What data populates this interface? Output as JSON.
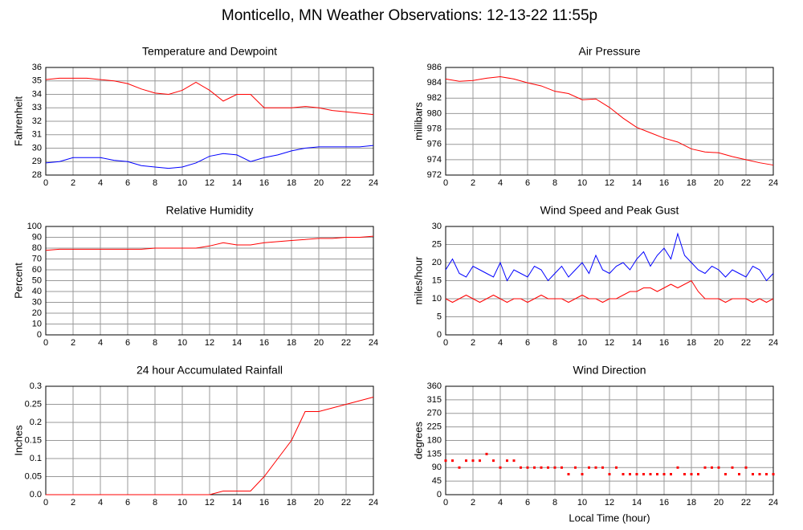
{
  "title": "Monticello, MN Weather Observations: 12-13-22 11:55p",
  "chart_data": [
    {
      "type": "line",
      "title": "Temperature and Dewpoint",
      "ylabel": "Fahrenheit",
      "x": [
        0,
        1,
        2,
        3,
        4,
        5,
        6,
        7,
        8,
        9,
        10,
        11,
        12,
        13,
        14,
        15,
        16,
        17,
        18,
        19,
        20,
        21,
        22,
        23,
        24
      ],
      "series": [
        {
          "color": "#ff0000",
          "values": [
            35.1,
            35.2,
            35.2,
            35.2,
            35.1,
            35.0,
            34.8,
            34.4,
            34.1,
            34.0,
            34.3,
            34.9,
            34.3,
            33.5,
            34.0,
            34.0,
            33.0,
            33.0,
            33.0,
            33.1,
            33.0,
            32.8,
            32.7,
            32.6,
            32.5
          ]
        },
        {
          "color": "#0000ff",
          "values": [
            28.9,
            29.0,
            29.3,
            29.3,
            29.3,
            29.1,
            29.0,
            28.7,
            28.6,
            28.5,
            28.6,
            28.9,
            29.4,
            29.6,
            29.5,
            29.0,
            29.3,
            29.5,
            29.8,
            30.0,
            30.1,
            30.1,
            30.1,
            30.1,
            30.2
          ]
        }
      ],
      "xlim": [
        0,
        24
      ],
      "xticks": [
        0,
        2,
        4,
        6,
        8,
        10,
        12,
        14,
        16,
        18,
        20,
        22,
        24
      ],
      "ylim": [
        28,
        36
      ],
      "yticks": [
        28,
        29,
        30,
        31,
        32,
        33,
        34,
        35,
        36
      ],
      "grid": true
    },
    {
      "type": "line",
      "title": "Air Pressure",
      "ylabel": "millibars",
      "x": [
        0,
        1,
        2,
        3,
        4,
        5,
        6,
        7,
        8,
        9,
        10,
        11,
        12,
        13,
        14,
        15,
        16,
        17,
        18,
        19,
        20,
        21,
        22,
        23,
        24
      ],
      "series": [
        {
          "color": "#ff0000",
          "values": [
            984.5,
            984.2,
            984.3,
            984.6,
            984.8,
            984.5,
            984.0,
            983.6,
            982.9,
            982.6,
            981.8,
            981.9,
            980.8,
            979.4,
            978.2,
            977.5,
            976.8,
            976.3,
            975.4,
            975.0,
            974.9,
            974.4,
            974.0,
            973.6,
            973.3
          ]
        }
      ],
      "xlim": [
        0,
        24
      ],
      "xticks": [
        0,
        2,
        4,
        6,
        8,
        10,
        12,
        14,
        16,
        18,
        20,
        22,
        24
      ],
      "ylim": [
        972,
        986
      ],
      "yticks": [
        972,
        974,
        976,
        978,
        980,
        982,
        984,
        986
      ],
      "grid": true
    },
    {
      "type": "line",
      "title": "Relative Humidity",
      "ylabel": "Percent",
      "x": [
        0,
        1,
        2,
        3,
        4,
        5,
        6,
        7,
        8,
        9,
        10,
        11,
        12,
        13,
        14,
        15,
        16,
        17,
        18,
        19,
        20,
        21,
        22,
        23,
        24
      ],
      "series": [
        {
          "color": "#ff0000",
          "values": [
            78,
            79,
            79,
            79,
            79,
            79,
            79,
            79,
            80,
            80,
            80,
            80,
            82,
            85,
            83,
            83,
            85,
            86,
            87,
            88,
            89,
            89,
            90,
            90,
            91
          ]
        }
      ],
      "xlim": [
        0,
        24
      ],
      "xticks": [
        0,
        2,
        4,
        6,
        8,
        10,
        12,
        14,
        16,
        18,
        20,
        22,
        24
      ],
      "ylim": [
        0,
        100
      ],
      "yticks": [
        0,
        10,
        20,
        30,
        40,
        50,
        60,
        70,
        80,
        90,
        100
      ],
      "grid": true
    },
    {
      "type": "line",
      "title": "Wind Speed and Peak Gust",
      "ylabel": "miles/hour",
      "x": [
        0,
        0.5,
        1,
        1.5,
        2,
        2.5,
        3,
        3.5,
        4,
        4.5,
        5,
        5.5,
        6,
        6.5,
        7,
        7.5,
        8,
        8.5,
        9,
        9.5,
        10,
        10.5,
        11,
        11.5,
        12,
        12.5,
        13,
        13.5,
        14,
        14.5,
        15,
        15.5,
        16,
        16.5,
        17,
        17.5,
        18,
        18.5,
        19,
        19.5,
        20,
        20.5,
        21,
        21.5,
        22,
        22.5,
        23,
        23.5,
        24
      ],
      "series": [
        {
          "color": "#0000ff",
          "values": [
            18,
            21,
            17,
            16,
            19,
            18,
            17,
            16,
            20,
            15,
            18,
            17,
            16,
            19,
            18,
            15,
            17,
            19,
            16,
            18,
            20,
            17,
            22,
            18,
            17,
            19,
            20,
            18,
            21,
            23,
            19,
            22,
            24,
            21,
            28,
            22,
            20,
            18,
            17,
            19,
            18,
            16,
            18,
            17,
            16,
            19,
            18,
            15,
            17
          ]
        },
        {
          "color": "#ff0000",
          "values": [
            10,
            9,
            10,
            11,
            10,
            9,
            10,
            11,
            10,
            9,
            10,
            10,
            9,
            10,
            11,
            10,
            10,
            10,
            9,
            10,
            11,
            10,
            10,
            9,
            10,
            10,
            11,
            12,
            12,
            13,
            13,
            12,
            13,
            14,
            13,
            14,
            15,
            12,
            10,
            10,
            10,
            9,
            10,
            10,
            10,
            9,
            10,
            9,
            10
          ]
        }
      ],
      "xlim": [
        0,
        24
      ],
      "xticks": [
        0,
        2,
        4,
        6,
        8,
        10,
        12,
        14,
        16,
        18,
        20,
        22,
        24
      ],
      "ylim": [
        0,
        30
      ],
      "yticks": [
        0,
        5,
        10,
        15,
        20,
        25,
        30
      ],
      "grid": true
    },
    {
      "type": "line",
      "title": "24 hour Accumulated Rainfall",
      "ylabel": "Inches",
      "x": [
        0,
        1,
        2,
        3,
        4,
        5,
        6,
        7,
        8,
        9,
        10,
        11,
        12,
        13,
        14,
        15,
        16,
        17,
        18,
        19,
        20,
        21,
        22,
        23,
        24
      ],
      "series": [
        {
          "color": "#ff0000",
          "values": [
            0,
            0,
            0,
            0,
            0,
            0,
            0,
            0,
            0,
            0,
            0,
            0,
            0,
            0.01,
            0.01,
            0.01,
            0.05,
            0.1,
            0.15,
            0.23,
            0.23,
            0.24,
            0.25,
            0.26,
            0.27
          ]
        }
      ],
      "xlim": [
        0,
        24
      ],
      "xticks": [
        0,
        2,
        4,
        6,
        8,
        10,
        12,
        14,
        16,
        18,
        20,
        22,
        24
      ],
      "ylim": [
        0,
        0.3
      ],
      "yticks": [
        {
          "value": 0,
          "label": "0.0"
        },
        0.05,
        0.1,
        0.15,
        0.2,
        0.25,
        0.3
      ],
      "grid": true
    },
    {
      "type": "scatter",
      "title": "Wind Direction",
      "ylabel": "degrees",
      "xlabel": "Local Time (hour)",
      "x": [
        0,
        0.5,
        1,
        1.5,
        2,
        2.5,
        3,
        3.5,
        4,
        4.5,
        5,
        5.5,
        6,
        6.5,
        7,
        7.5,
        8,
        8.5,
        9,
        9.5,
        10,
        10.5,
        11,
        11.5,
        12,
        12.5,
        13,
        13.5,
        14,
        14.5,
        15,
        15.5,
        16,
        16.5,
        17,
        17.5,
        18,
        18.5,
        19,
        19.5,
        20,
        20.5,
        21,
        21.5,
        22,
        22.5,
        23,
        23.5,
        24
      ],
      "series": [
        {
          "color": "#ff0000",
          "values": [
            113,
            113,
            90,
            113,
            113,
            113,
            135,
            113,
            90,
            113,
            113,
            90,
            90,
            90,
            90,
            90,
            90,
            90,
            68,
            90,
            68,
            90,
            90,
            90,
            68,
            90,
            68,
            68,
            68,
            68,
            68,
            68,
            68,
            68,
            90,
            68,
            68,
            68,
            90,
            90,
            90,
            68,
            90,
            68,
            90,
            68,
            68,
            68,
            68
          ]
        }
      ],
      "xlim": [
        0,
        24
      ],
      "xticks": [
        0,
        2,
        4,
        6,
        8,
        10,
        12,
        14,
        16,
        18,
        20,
        22,
        24
      ],
      "ylim": [
        0,
        360
      ],
      "yticks": [
        0,
        45,
        90,
        135,
        180,
        225,
        270,
        315,
        360
      ],
      "grid": true
    }
  ]
}
